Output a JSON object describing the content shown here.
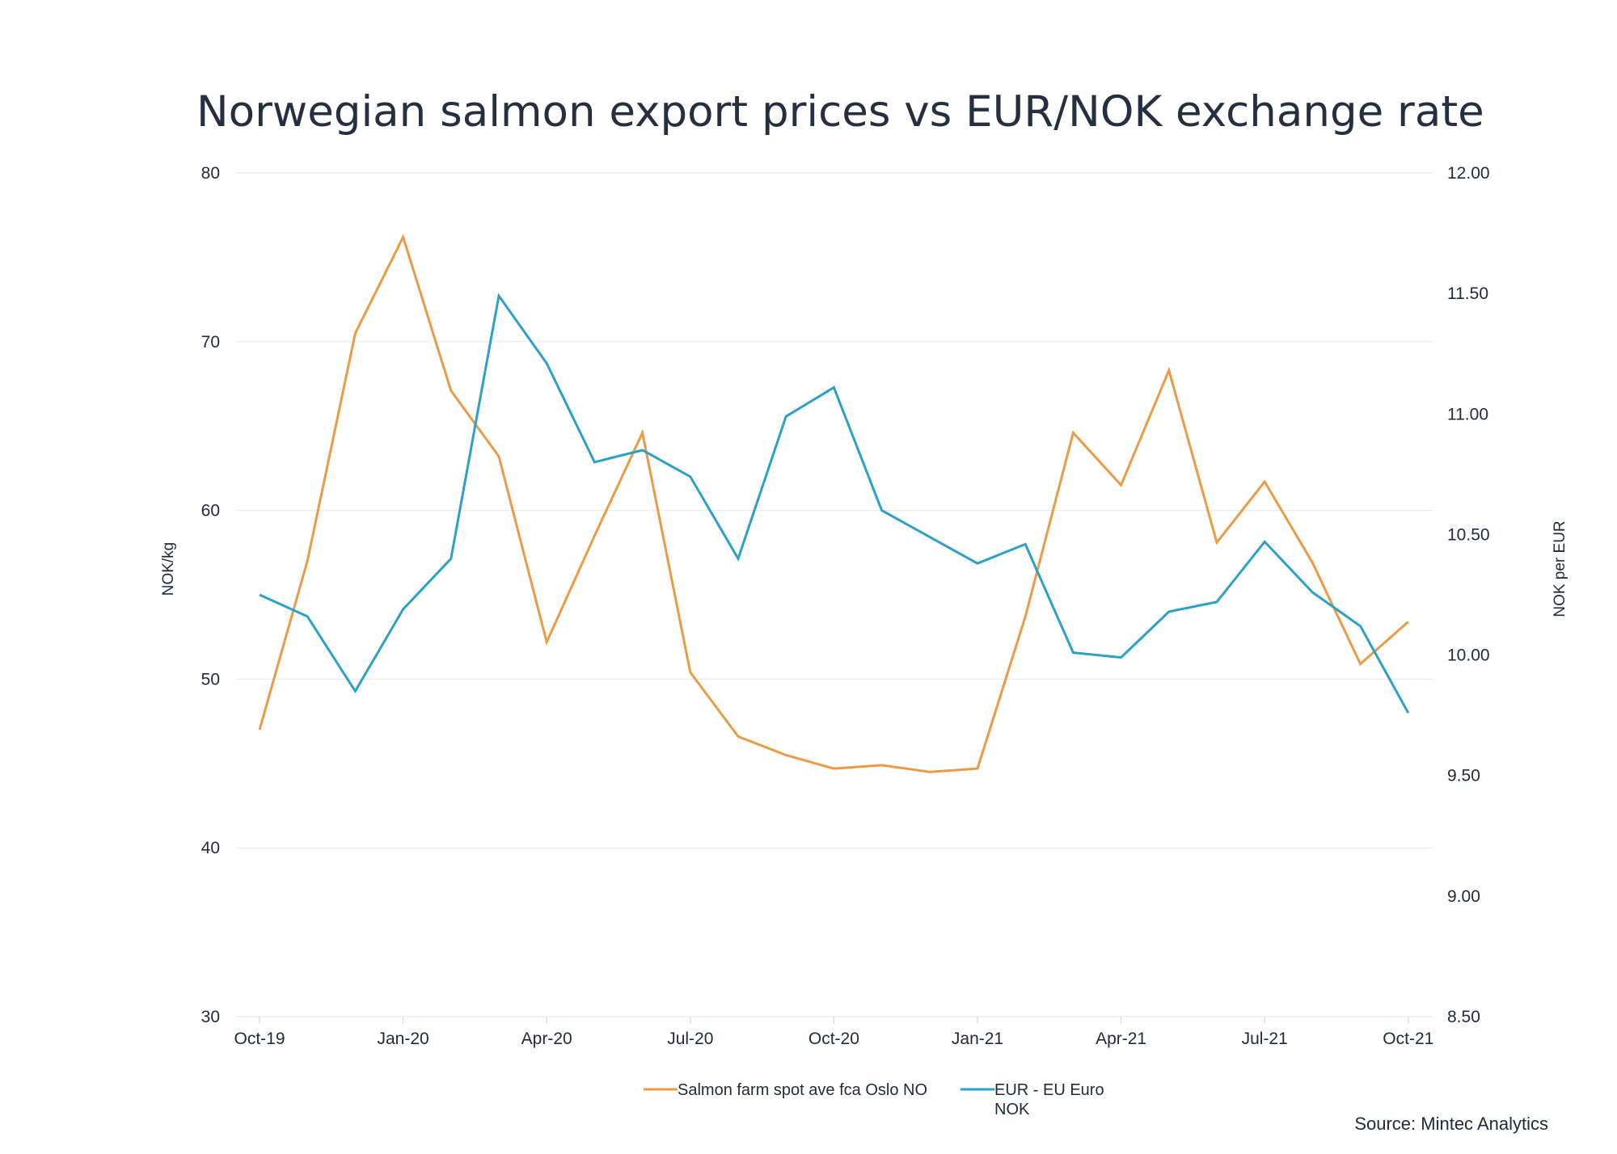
{
  "chart_data": {
    "type": "line",
    "title": "Norwegian salmon export prices vs EUR/NOK exchange rate",
    "ylabel": "NOK/kg",
    "y2label": "NOK per EUR",
    "ylim": [
      30,
      80
    ],
    "y2lim": [
      8.5,
      12.0
    ],
    "yticks": [
      "80",
      "70",
      "60",
      "50",
      "40",
      "30"
    ],
    "y2ticks": [
      "12.00",
      "11.50",
      "11.00",
      "10.50",
      "10.00",
      "9.50",
      "9.00",
      "8.50"
    ],
    "x": [
      "Oct-19",
      "Nov-19",
      "Dec-19",
      "Jan-20",
      "Feb-20",
      "Mar-20",
      "Apr-20",
      "May-20",
      "Jun-20",
      "Jul-20",
      "Aug-20",
      "Sep-20",
      "Oct-20",
      "Nov-20",
      "Dec-20",
      "Jan-21",
      "Feb-21",
      "Mar-21",
      "Apr-21",
      "May-21",
      "Jun-21",
      "Jul-21",
      "Aug-21",
      "Sep-21",
      "Oct-21"
    ],
    "xtick_labels": [
      "Oct-19",
      "Jan-20",
      "Apr-20",
      "Jul-20",
      "Oct-20",
      "Jan-21",
      "Apr-21",
      "Jul-21",
      "Oct-21"
    ],
    "grid": true,
    "legend_position": "bottom",
    "series": [
      {
        "name": "Salmon farm spot ave fca Oslo NO",
        "axis": "left",
        "color": "#ec9a45",
        "values": [
          47.0,
          57.0,
          70.5,
          76.2,
          67.1,
          63.2,
          52.2,
          58.5,
          64.6,
          50.4,
          46.6,
          45.5,
          44.7,
          44.9,
          44.5,
          44.7,
          53.7,
          64.6,
          61.5,
          68.3,
          58.1,
          61.7,
          56.9,
          50.9,
          53.4
        ]
      },
      {
        "name": "EUR - EU Euro NOK",
        "axis": "right",
        "color": "#2ba0c8",
        "values": [
          10.25,
          10.16,
          9.85,
          10.19,
          10.4,
          11.49,
          11.21,
          10.8,
          10.85,
          10.74,
          10.4,
          10.99,
          11.11,
          10.6,
          10.49,
          10.38,
          10.46,
          10.01,
          9.99,
          10.18,
          10.22,
          10.47,
          10.26,
          10.12,
          9.76
        ]
      }
    ],
    "legend_labels": [
      "Salmon farm spot ave fca Oslo NO",
      "EUR - EU Euro",
      "NOK"
    ],
    "source": "Source: Mintec Analytics"
  }
}
